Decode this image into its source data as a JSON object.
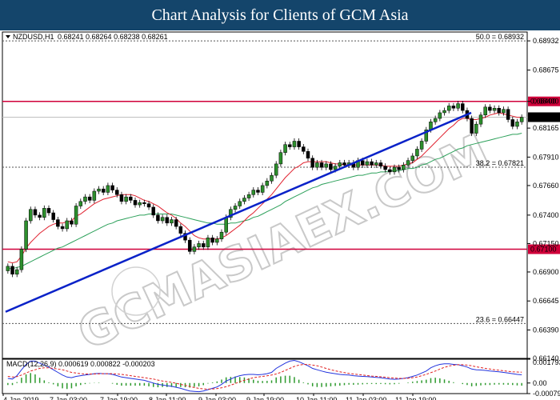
{
  "title": "Chart Analysis for Clients of GCM Asia",
  "chart_data": [
    {
      "type": "candlestick",
      "title": "NZDUSD,H1",
      "ohlc_label": "0.68241 0.68264 0.68238 0.68261",
      "ylim": [
        0.6614,
        0.6901
      ],
      "y_ticks": [
        "0.68932",
        "0.68675",
        "0.68400",
        "0.68165",
        "0.67910",
        "0.67660",
        "0.67400",
        "0.67150",
        "0.66900",
        "0.66645",
        "0.66390",
        "0.66140"
      ],
      "x_ticks": [
        "4 Jan 2019",
        "7 Jan 03:00",
        "7 Jan 19:00",
        "8 Jan 11:00",
        "9 Jan 03:00",
        "9 Jan 19:00",
        "10 Jan 11:00",
        "11 Jan 03:00",
        "11 Jan 19:00"
      ],
      "current_price": "0.68261",
      "horizontal_levels": [
        {
          "value": 0.684,
          "label": "0.68400",
          "color": "#d0003a"
        },
        {
          "value": 0.671,
          "label": "0.67100",
          "color": "#d0003a"
        }
      ],
      "fibonacci_levels": [
        {
          "value": 0.68932,
          "label": "50.0 = 0.68932"
        },
        {
          "value": 0.67821,
          "label": "38.2 = 0.67821"
        },
        {
          "value": 0.66447,
          "label": "23.6 = 0.66447"
        }
      ],
      "close": [
        0.6695,
        0.6688,
        0.6692,
        0.671,
        0.6735,
        0.6745,
        0.674,
        0.6738,
        0.6746,
        0.6742,
        0.6736,
        0.673,
        0.6728,
        0.6735,
        0.6732,
        0.6748,
        0.6752,
        0.6756,
        0.6753,
        0.6761,
        0.6763,
        0.676,
        0.6766,
        0.6762,
        0.6758,
        0.6752,
        0.6756,
        0.6753,
        0.6749,
        0.6751,
        0.675,
        0.6747,
        0.674,
        0.6735,
        0.6738,
        0.6733,
        0.6736,
        0.673,
        0.6724,
        0.6718,
        0.6708,
        0.6712,
        0.6715,
        0.6712,
        0.672,
        0.6716,
        0.6719,
        0.6725,
        0.6738,
        0.6745,
        0.6748,
        0.6752,
        0.6755,
        0.6758,
        0.6762,
        0.676,
        0.6766,
        0.677,
        0.6775,
        0.6785,
        0.6795,
        0.6802,
        0.68,
        0.6805,
        0.68,
        0.6796,
        0.679,
        0.6782,
        0.6786,
        0.6782,
        0.6785,
        0.678,
        0.6783,
        0.6786,
        0.6784,
        0.6786,
        0.6782,
        0.6788,
        0.6784,
        0.6787,
        0.6784,
        0.6786,
        0.6783,
        0.678,
        0.6778,
        0.6782,
        0.678,
        0.6784,
        0.6788,
        0.6792,
        0.6798,
        0.6805,
        0.6815,
        0.6822,
        0.6825,
        0.683,
        0.6832,
        0.6836,
        0.6834,
        0.6838,
        0.6832,
        0.6825,
        0.6812,
        0.682,
        0.6828,
        0.6835,
        0.6832,
        0.6834,
        0.683,
        0.6833,
        0.6824,
        0.6818,
        0.6822,
        0.6826
      ],
      "ma_fast": [
        0.6699,
        0.6698,
        0.6699,
        0.6704,
        0.6711,
        0.6716,
        0.672,
        0.6724,
        0.6727,
        0.673,
        0.6732,
        0.6733,
        0.6733,
        0.6734,
        0.6735,
        0.6739,
        0.6741,
        0.6744,
        0.6747,
        0.675,
        0.6752,
        0.6754,
        0.6755,
        0.6756,
        0.6757,
        0.6758,
        0.6758,
        0.6758,
        0.6757,
        0.6755,
        0.6753,
        0.6752,
        0.675,
        0.6748,
        0.6745,
        0.6742,
        0.674,
        0.6737,
        0.6733,
        0.673,
        0.6726,
        0.6722,
        0.672,
        0.6719,
        0.6719,
        0.6719,
        0.6719,
        0.672,
        0.6722,
        0.6725,
        0.6728,
        0.6731,
        0.6735,
        0.6739,
        0.6742,
        0.6746,
        0.675,
        0.6754,
        0.6758,
        0.6763,
        0.6768,
        0.6773,
        0.6777,
        0.6781,
        0.6783,
        0.6786,
        0.6787,
        0.6787,
        0.6787,
        0.6787,
        0.6787,
        0.6786,
        0.6785,
        0.6785,
        0.6784,
        0.6784,
        0.6784,
        0.6784,
        0.6784,
        0.6784,
        0.6784,
        0.6784,
        0.6784,
        0.6783,
        0.6783,
        0.6783,
        0.6783,
        0.6784,
        0.6785,
        0.6786,
        0.6789,
        0.6792,
        0.6796,
        0.68,
        0.6804,
        0.6808,
        0.6812,
        0.6816,
        0.6819,
        0.6823,
        0.6825,
        0.6825,
        0.6824,
        0.6824,
        0.6825,
        0.6826,
        0.6828,
        0.6829,
        0.683,
        0.6829,
        0.6828,
        0.6827,
        0.6826,
        0.6826
      ],
      "ma_slow": [
        0.6693,
        0.6693,
        0.6694,
        0.6695,
        0.6697,
        0.6699,
        0.6701,
        0.6703,
        0.6705,
        0.6707,
        0.6709,
        0.6711,
        0.6712,
        0.6714,
        0.6716,
        0.6718,
        0.672,
        0.6722,
        0.6724,
        0.6726,
        0.6728,
        0.673,
        0.6732,
        0.6733,
        0.6735,
        0.6736,
        0.6737,
        0.6738,
        0.6739,
        0.674,
        0.674,
        0.6741,
        0.6741,
        0.6741,
        0.6741,
        0.6741,
        0.6741,
        0.674,
        0.6739,
        0.6738,
        0.6737,
        0.6736,
        0.6735,
        0.6734,
        0.6733,
        0.6733,
        0.6732,
        0.6732,
        0.6732,
        0.6733,
        0.6733,
        0.6734,
        0.6735,
        0.6736,
        0.6738,
        0.6739,
        0.6741,
        0.6743,
        0.6745,
        0.6747,
        0.6749,
        0.6752,
        0.6754,
        0.6756,
        0.6758,
        0.676,
        0.6762,
        0.6764,
        0.6765,
        0.6767,
        0.6768,
        0.6769,
        0.677,
        0.6771,
        0.6772,
        0.6773,
        0.6774,
        0.6775,
        0.6775,
        0.6776,
        0.6777,
        0.6777,
        0.6778,
        0.6778,
        0.6779,
        0.6779,
        0.6779,
        0.678,
        0.6781,
        0.6781,
        0.6782,
        0.6784,
        0.6785,
        0.6787,
        0.6789,
        0.679,
        0.6792,
        0.6794,
        0.6796,
        0.6798,
        0.6799,
        0.6801,
        0.6802,
        0.6803,
        0.6804,
        0.6805,
        0.6806,
        0.6807,
        0.6808,
        0.6809,
        0.681,
        0.6811,
        0.6811,
        0.6812
      ],
      "trendline": {
        "from": [
          0,
          0.6655
        ],
        "to": [
          122,
          0.683
        ]
      }
    },
    {
      "type": "macd",
      "title": "MACD(12,26,9) 0.000619 0.000822 -0.000203",
      "ylim": [
        -0.000797,
        0.001793
      ],
      "y_ticks": [
        "0.001793",
        "0.00",
        "-0.000797"
      ],
      "macd": [
        0.00035,
        0.0003,
        0.00055,
        0.001,
        0.0014,
        0.00165,
        0.00165,
        0.0015,
        0.00135,
        0.0012,
        0.001,
        0.0008,
        0.0006,
        0.00045,
        0.0004,
        0.0005,
        0.00055,
        0.0006,
        0.00065,
        0.0007,
        0.00072,
        0.0007,
        0.0007,
        0.00065,
        0.00055,
        0.00045,
        0.0004,
        0.00035,
        0.0003,
        0.00025,
        0.0002,
        0.0001,
        0.0,
        -0.0001,
        -0.00015,
        -0.0002,
        -0.00025,
        -0.00032,
        -0.0004,
        -0.0005,
        -0.0006,
        -0.00063,
        -0.00065,
        -0.0006,
        -0.0005,
        -0.0004,
        -0.0003,
        -0.0001,
        0.00015,
        0.0003,
        0.00045,
        0.00055,
        0.00062,
        0.00065,
        0.00065,
        0.00062,
        0.00065,
        0.0007,
        0.0008,
        0.0011,
        0.0013,
        0.0015,
        0.00165,
        0.0017,
        0.0016,
        0.00145,
        0.0013,
        0.0011,
        0.001,
        0.0009,
        0.00082,
        0.00075,
        0.0007,
        0.00065,
        0.00062,
        0.0006,
        0.00055,
        0.00052,
        0.0005,
        0.00048,
        0.00045,
        0.00042,
        0.0004,
        0.00035,
        0.0003,
        0.00028,
        0.0003,
        0.00035,
        0.0004,
        0.0005,
        0.0006,
        0.00075,
        0.0009,
        0.00115,
        0.0013,
        0.0014,
        0.00145,
        0.00145,
        0.0014,
        0.00138,
        0.0013,
        0.0012,
        0.00105,
        0.001,
        0.00098,
        0.00095,
        0.0009,
        0.00088,
        0.00085,
        0.0008,
        0.00075,
        0.0007,
        0.00065,
        0.00062
      ],
      "signal": [
        0.0005,
        0.00045,
        0.00048,
        0.0006,
        0.00075,
        0.0009,
        0.001,
        0.0011,
        0.00115,
        0.00115,
        0.0011,
        0.00105,
        0.001,
        0.0009,
        0.0008,
        0.00075,
        0.0007,
        0.00068,
        0.00068,
        0.00068,
        0.00069,
        0.0007,
        0.0007,
        0.0007,
        0.00068,
        0.00065,
        0.0006,
        0.00055,
        0.0005,
        0.00045,
        0.0004,
        0.00035,
        0.0003,
        0.00022,
        0.00015,
        0.0001,
        5e-05,
        -2e-05,
        -0.0001,
        -0.00018,
        -0.00026,
        -0.00034,
        -0.0004,
        -0.00044,
        -0.00046,
        -0.00045,
        -0.00042,
        -0.00036,
        -0.00028,
        -0.00016,
        -4e-05,
        0.0001,
        0.0002,
        0.0003,
        0.0004,
        0.00045,
        0.0005,
        0.00054,
        0.0006,
        0.00068,
        0.0008,
        0.00095,
        0.0011,
        0.00125,
        0.00135,
        0.0014,
        0.0014,
        0.00135,
        0.0013,
        0.0012,
        0.0011,
        0.001,
        0.00092,
        0.00085,
        0.00078,
        0.00072,
        0.00068,
        0.00064,
        0.0006,
        0.00056,
        0.00052,
        0.0005,
        0.00047,
        0.00044,
        0.0004,
        0.00037,
        0.00035,
        0.00035,
        0.00036,
        0.0004,
        0.00045,
        0.00055,
        0.00065,
        0.00078,
        0.0009,
        0.00105,
        0.00118,
        0.00128,
        0.00134,
        0.00138,
        0.00138,
        0.00135,
        0.0013,
        0.00122,
        0.00116,
        0.0011,
        0.00105,
        0.001,
        0.00096,
        0.00092,
        0.00088,
        0.00085,
        0.00083,
        0.00082
      ]
    }
  ]
}
